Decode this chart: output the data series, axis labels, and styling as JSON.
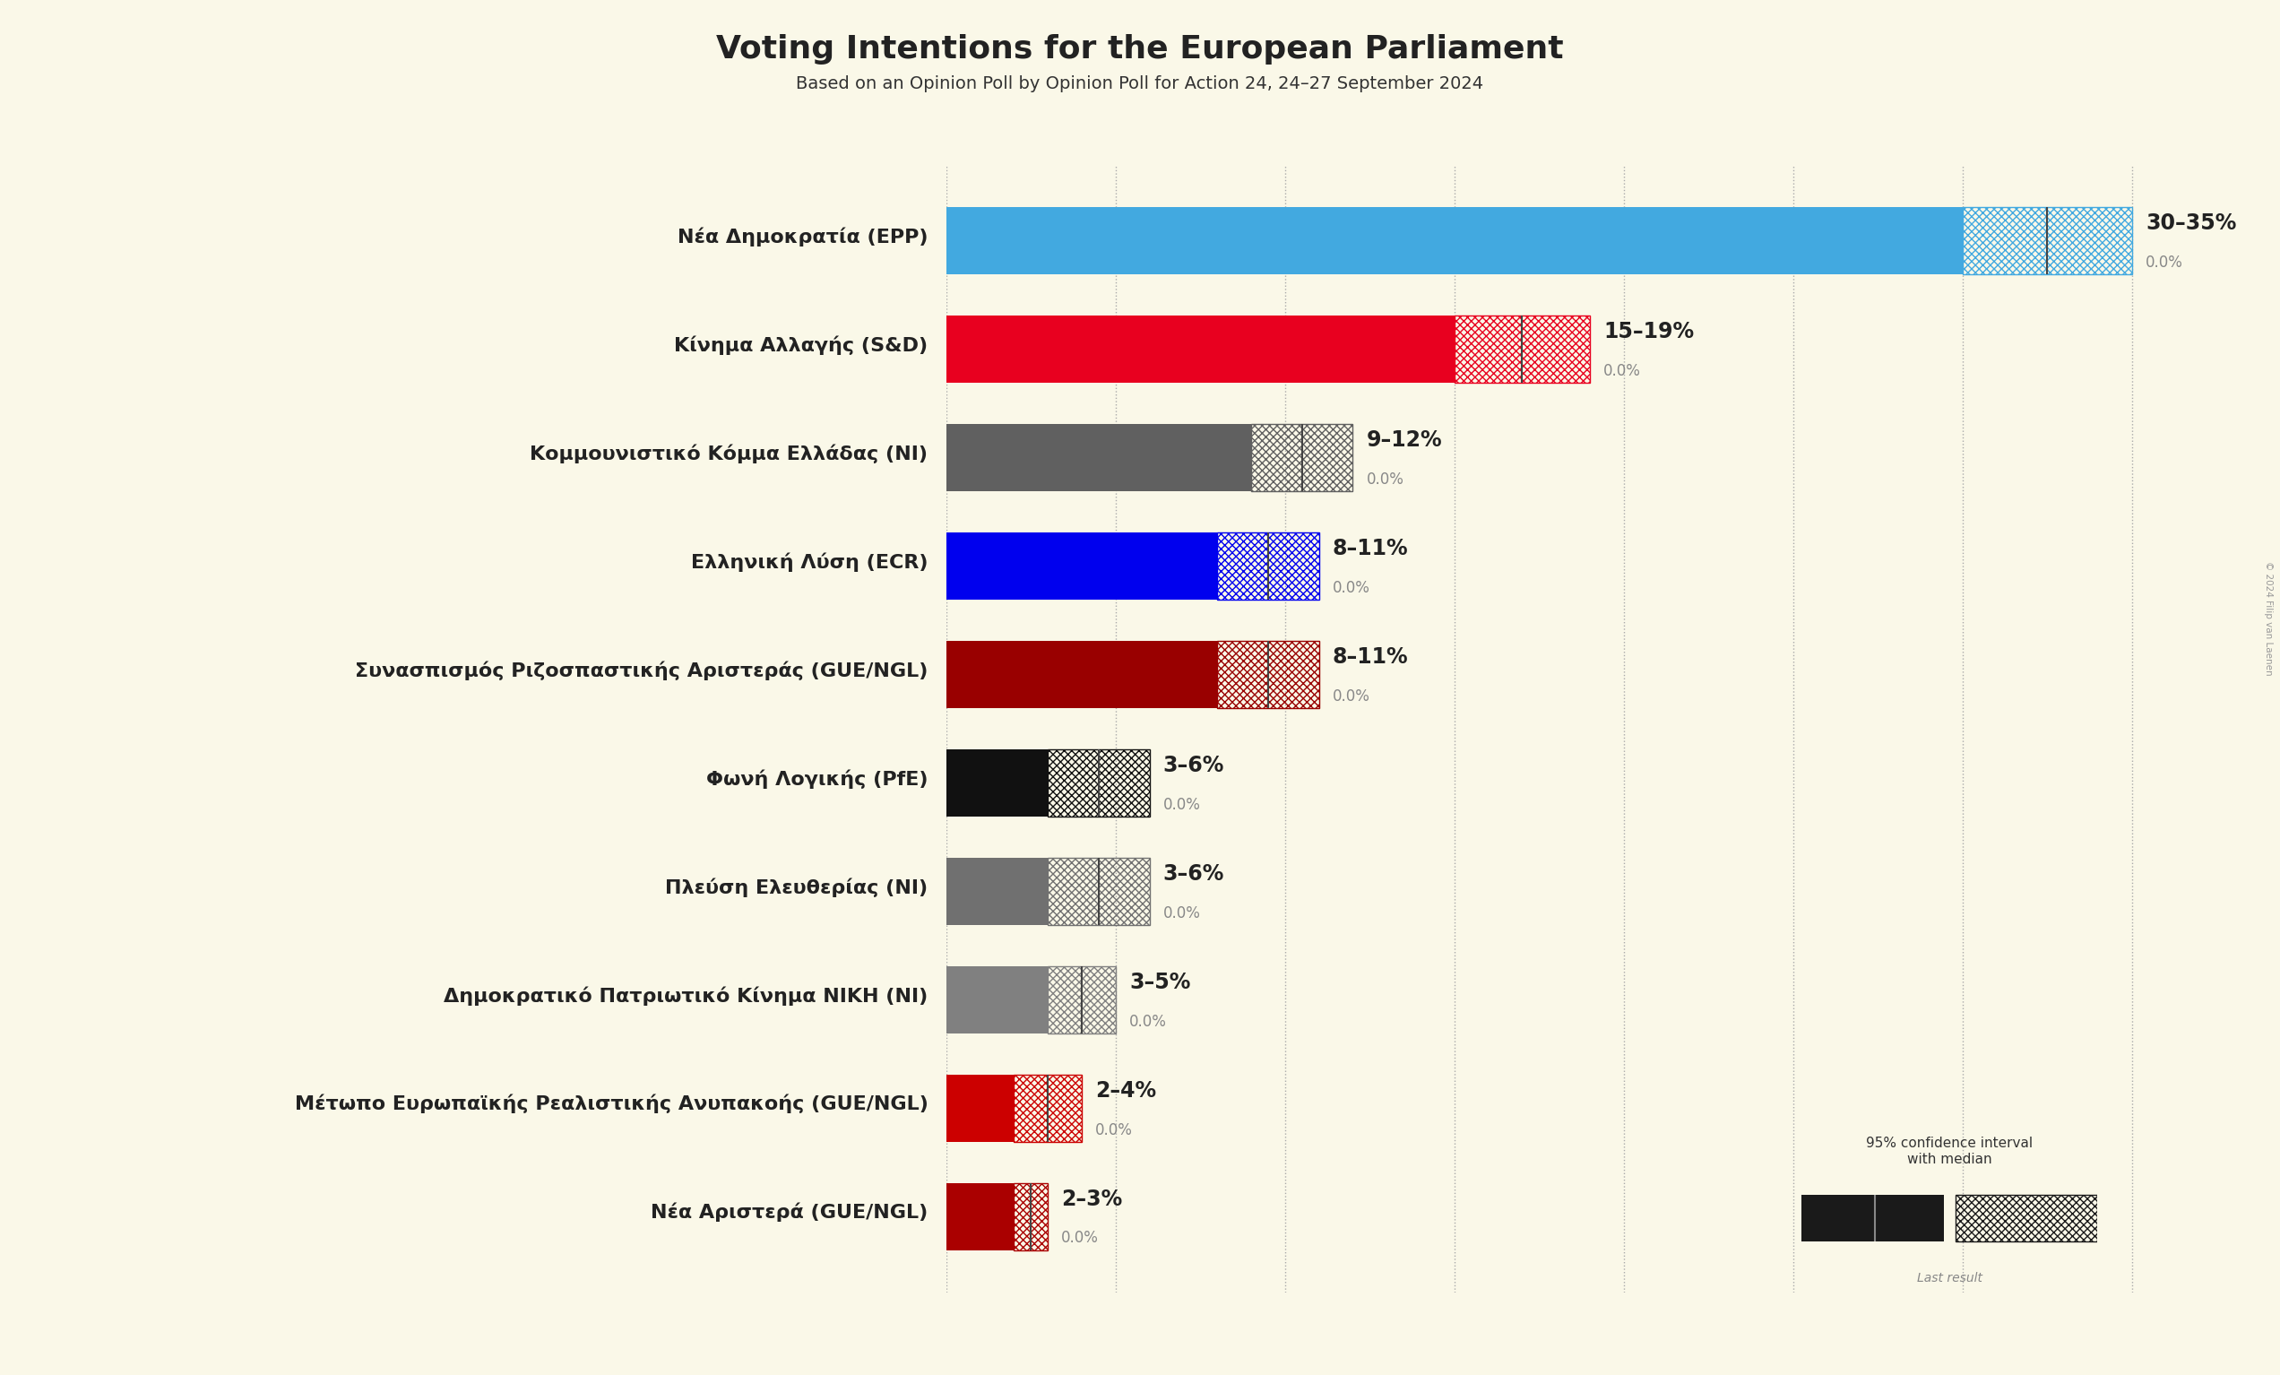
{
  "title": "Voting Intentions for the European Parliament",
  "subtitle": "Based on an Opinion Poll by Opinion Poll for Action 24, 24–27 September 2024",
  "background_color": "#faf8e8",
  "parties": [
    {
      "name": "Νέα Δημοκρατία (EPP)",
      "low": 30,
      "high": 35,
      "median": 32.5,
      "last": 0.0,
      "color": "#42a9e0"
    },
    {
      "name": "Κίνημα Αλλαγής (S&D)",
      "low": 15,
      "high": 19,
      "median": 17,
      "last": 0.0,
      "color": "#e8001f"
    },
    {
      "name": "Κομμουνιστικό Κόμμα Ελλάδας (NI)",
      "low": 9,
      "high": 12,
      "median": 10.5,
      "last": 0.0,
      "color": "#606060"
    },
    {
      "name": "Ελληνική Λύση (ECR)",
      "low": 8,
      "high": 11,
      "median": 9.5,
      "last": 0.0,
      "color": "#0000ee"
    },
    {
      "name": "Συνασπισμός Ριζοσπαστικής Αριστεράς (GUE/NGL)",
      "low": 8,
      "high": 11,
      "median": 9.5,
      "last": 0.0,
      "color": "#990000"
    },
    {
      "name": "Φωνή Λογικής (PfE)",
      "low": 3,
      "high": 6,
      "median": 4.5,
      "last": 0.0,
      "color": "#111111"
    },
    {
      "name": "Πλεύση Ελευθερίας (NI)",
      "low": 3,
      "high": 6,
      "median": 4.5,
      "last": 0.0,
      "color": "#707070"
    },
    {
      "name": "Δημοκρατικό Πατριωτικό Κίνημα ΝΙΚΗ (NI)",
      "low": 3,
      "high": 5,
      "median": 4,
      "last": 0.0,
      "color": "#808080"
    },
    {
      "name": "Μέτωπο Ευρωπαϊκής Ρεαλιστικής Ανυπακοής (GUE/NGL)",
      "low": 2,
      "high": 4,
      "median": 3,
      "last": 0.0,
      "color": "#cc0000"
    },
    {
      "name": "Νέα Αριστερά (GUE/NGL)",
      "low": 2,
      "high": 3,
      "median": 2.5,
      "last": 0.0,
      "color": "#aa0000"
    }
  ],
  "x_max": 36,
  "bar_height": 0.62,
  "title_fontsize": 26,
  "subtitle_fontsize": 14,
  "label_fontsize": 16,
  "range_fontsize": 17,
  "last_fontsize": 12,
  "copyright_text": "© 2024 Filip van Laenen",
  "dotted_lines": [
    0,
    5,
    10,
    15,
    20,
    25,
    30,
    35
  ]
}
